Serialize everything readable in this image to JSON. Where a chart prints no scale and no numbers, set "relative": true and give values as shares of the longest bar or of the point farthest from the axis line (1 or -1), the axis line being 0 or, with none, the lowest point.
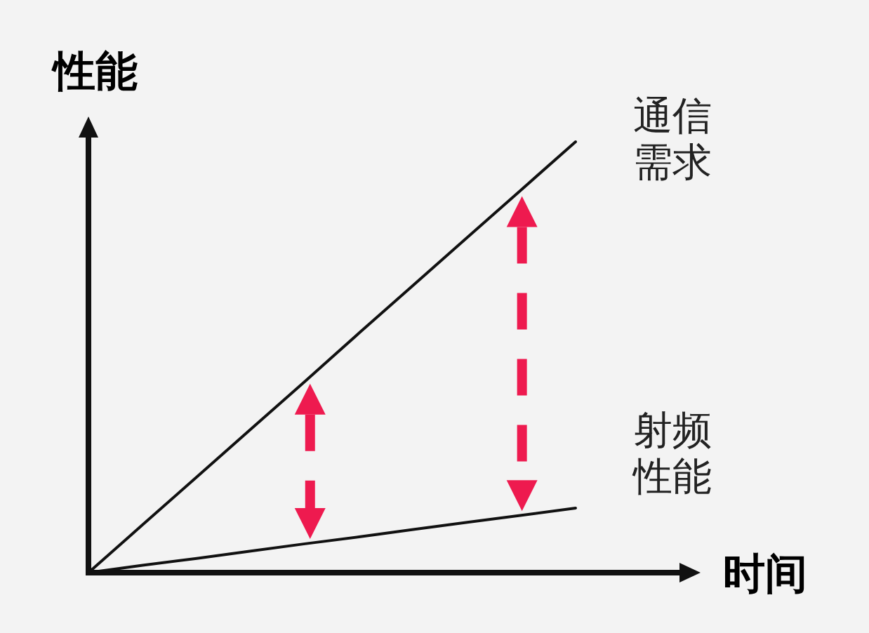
{
  "chart_data": {
    "type": "line",
    "relative": true,
    "xlabel": "时间",
    "ylabel": "性能",
    "marker": "none",
    "categories": [
      null,
      null,
      null,
      null,
      null,
      null,
      null,
      null,
      null,
      null
    ],
    "series": [
      {
        "name": "通信需求",
        "color": "#111111",
        "values": [
          0,
          0.111,
          0.222,
          0.333,
          0.444,
          0.556,
          0.667,
          0.778,
          0.889,
          1
        ]
      },
      {
        "name": "射频性能",
        "color": "#111111",
        "values": [
          0,
          0.017,
          0.033,
          0.05,
          0.067,
          0.083,
          0.1,
          0.117,
          0.133,
          0.15
        ]
      }
    ]
  }
}
